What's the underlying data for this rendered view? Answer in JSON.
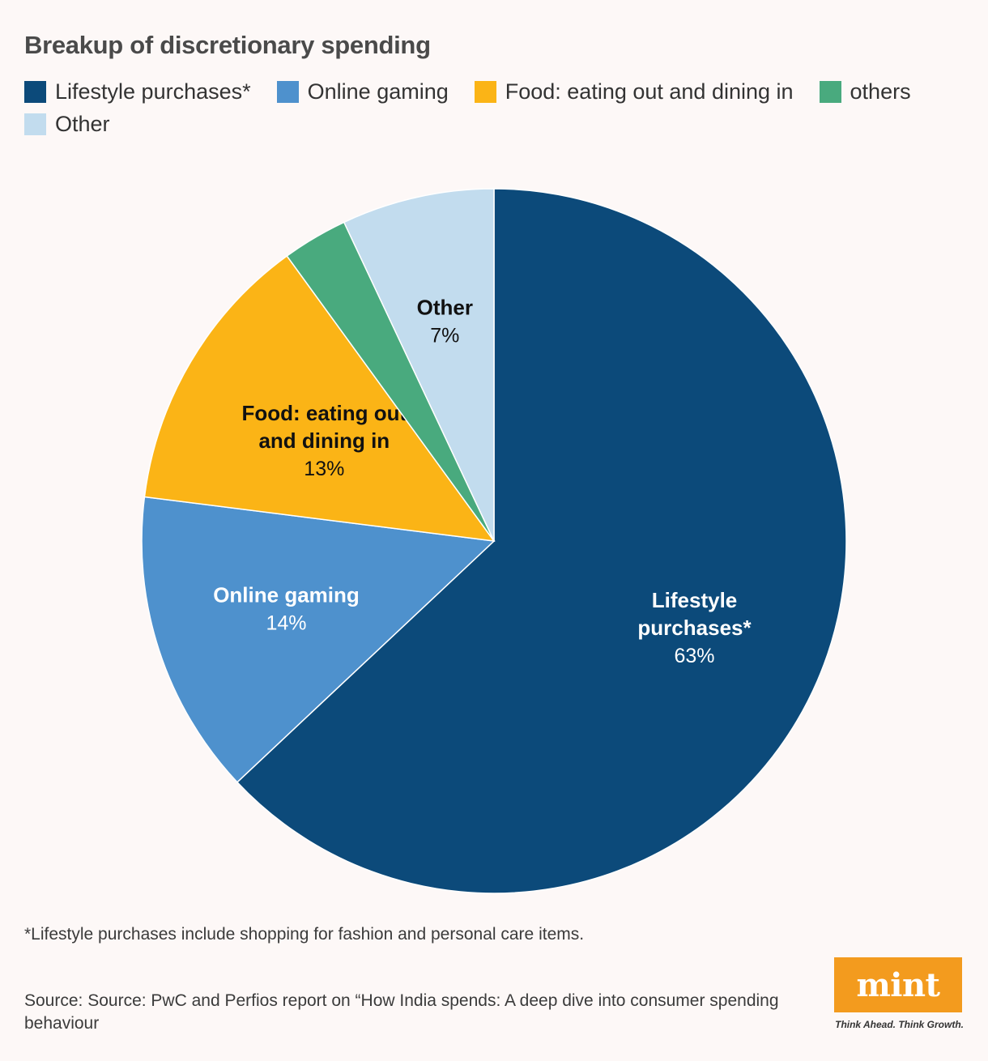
{
  "title": "Breakup of discretionary spending",
  "chart_data": {
    "type": "pie",
    "title": "Breakup of discretionary spending",
    "legend_position": "top",
    "legend": [
      {
        "label": "Lifestyle purchases*",
        "color": "#0c4a7a"
      },
      {
        "label": "Online gaming",
        "color": "#4e91cd"
      },
      {
        "label": "Food: eating out and dining in",
        "color": "#fbb416"
      },
      {
        "label": "others",
        "color": "#49aa7e"
      },
      {
        "label": "Other",
        "color": "#c2dcee"
      }
    ],
    "slices": [
      {
        "label": "Lifestyle purchases*",
        "label_lines": [
          "Lifestyle",
          "purchases*"
        ],
        "value": 63,
        "value_label": "63%",
        "color": "#0c4a7a",
        "text_color": "#ffffff"
      },
      {
        "label": "Online gaming",
        "label_lines": [
          "Online gaming"
        ],
        "value": 14,
        "value_label": "14%",
        "color": "#4e91cd",
        "text_color": "#ffffff"
      },
      {
        "label": "Food: eating out and dining in",
        "label_lines": [
          "Food: eating out",
          "and dining in"
        ],
        "value": 13,
        "value_label": "13%",
        "color": "#fbb416",
        "text_color": "#111111"
      },
      {
        "label": "others",
        "label_lines": [],
        "value": 3,
        "value_label": "",
        "color": "#49aa7e",
        "text_color": "#111111"
      },
      {
        "label": "Other",
        "label_lines": [
          "Other"
        ],
        "value": 7,
        "value_label": "7%",
        "color": "#c2dcee",
        "text_color": "#111111"
      }
    ]
  },
  "footnote": "*Lifestyle purchases include shopping for fashion and personal care items.",
  "source": "Source: Source: PwC and Perfios report on “How India spends: A deep dive into consumer spending behaviour",
  "brand": {
    "logo_text": "mint",
    "tagline": "Think Ahead. Think Growth.",
    "color": "#f39b1e"
  }
}
